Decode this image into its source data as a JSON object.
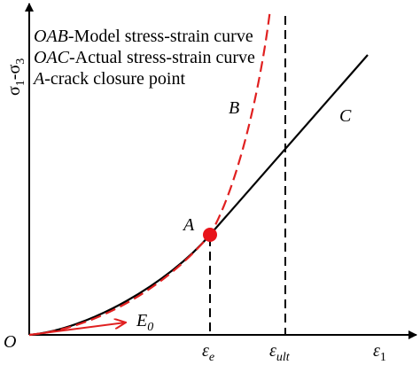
{
  "legend": [
    {
      "key": "OAB",
      "text": "-Model stress-strain curve"
    },
    {
      "key": "OAC",
      "text": "-Actual stress-strain curve"
    },
    {
      "key": "A",
      "text": "-crack closure point"
    }
  ],
  "axes": {
    "y_label": {
      "symbol1": "σ",
      "sub1": "1",
      "sep": "-",
      "symbol2": "σ",
      "sub2": "3"
    },
    "x_label": {
      "symbol": "ε",
      "sub": "1"
    },
    "origin": "O"
  },
  "points": {
    "A": "A",
    "B": "B",
    "C": "C"
  },
  "strain_marks": [
    {
      "symbol": "ε",
      "sub": "e"
    },
    {
      "symbol": "ε",
      "sub": "ult"
    }
  ],
  "tangent_label": {
    "symbol": "E",
    "sub": "0"
  }
}
